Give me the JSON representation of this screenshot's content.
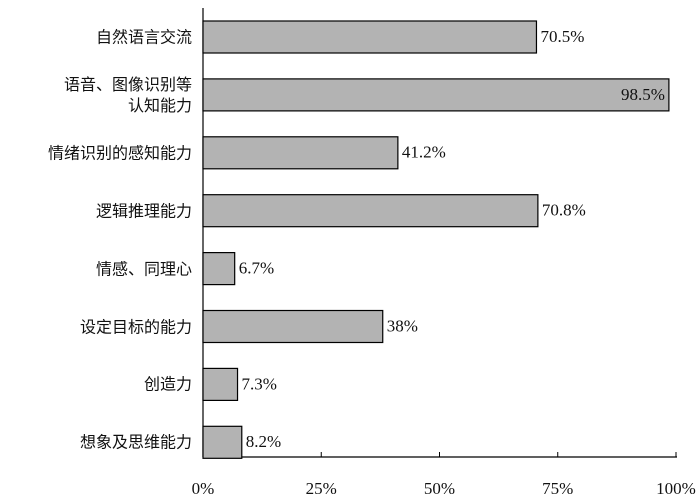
{
  "chart_data": {
    "type": "bar",
    "orientation": "horizontal",
    "categories": [
      "自然语言交流",
      "语音、图像识别等\n认知能力",
      "情绪识别的感知能力",
      "逻辑推理能力",
      "情感、同理心",
      "设定目标的能力",
      "创造力",
      "想象及思维能力"
    ],
    "values": [
      70.5,
      98.5,
      41.2,
      70.8,
      6.7,
      38,
      7.3,
      8.2
    ],
    "value_labels": [
      "70.5%",
      "98.5%",
      "41.2%",
      "70.8%",
      "6.7%",
      "38%",
      "7.3%",
      "8.2%"
    ],
    "color": "#b3b3b3",
    "xlim": [
      0,
      100
    ],
    "xticks": [
      {
        "value": 0,
        "label": "0%"
      },
      {
        "value": 25,
        "label": "25%"
      },
      {
        "value": 50,
        "label": "50%"
      },
      {
        "value": 75,
        "label": "75%"
      },
      {
        "value": 100,
        "label": "100%"
      }
    ]
  }
}
